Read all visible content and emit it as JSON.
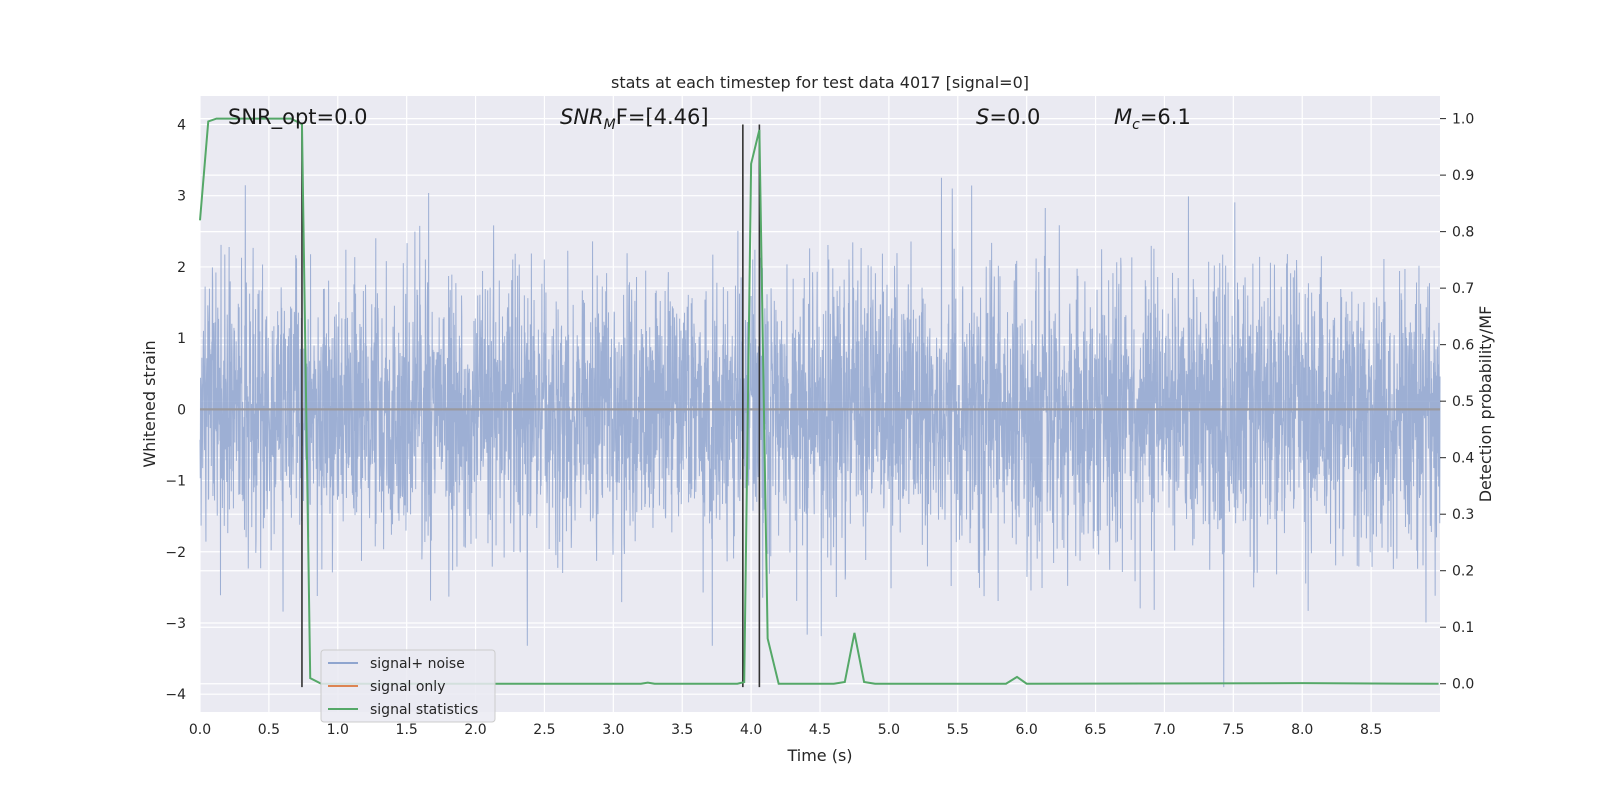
{
  "chart_data": {
    "type": "line",
    "title": "stats at each timestep for test data 4017 [signal=0]",
    "xlabel": "Time (s)",
    "ylabel": "Whitened strain",
    "y2label": "Detection probability/MF",
    "xlim": [
      0,
      9.0
    ],
    "ylim": [
      -4.25,
      4.4
    ],
    "y2lim": [
      -0.05,
      1.04
    ],
    "xticks": [
      "0.0",
      "0.5",
      "1.0",
      "1.5",
      "2.0",
      "2.5",
      "3.0",
      "3.5",
      "4.0",
      "4.5",
      "5.0",
      "5.5",
      "6.0",
      "6.5",
      "7.0",
      "7.5",
      "8.0",
      "8.5"
    ],
    "yticks": [
      "4",
      "3",
      "2",
      "1",
      "0",
      "−1",
      "−2",
      "−3",
      "−4"
    ],
    "y2ticks": [
      "1.0",
      "0.9",
      "0.8",
      "0.7",
      "0.6",
      "0.5",
      "0.4",
      "0.3",
      "0.2",
      "0.1",
      "0.0"
    ],
    "grid": true,
    "legend_position": "lower-left",
    "annotations": {
      "snr_opt": "SNR_opt=0.0",
      "snr_mf_main": "SNR",
      "snr_mf_sub": "M",
      "snr_mf_rest": "F=[4.46]",
      "s_main": "S",
      "s_rest": "=0.0",
      "mc_main": "M",
      "mc_sub": "c",
      "mc_rest": "=6.1"
    },
    "series": [
      {
        "name": "signal+ noise",
        "color": "#8fa5cf",
        "description_of_values": "whitened noisy strain, approx. zero-mean with std ~1, bounded roughly between -4 and 4"
      },
      {
        "name": "signal only",
        "color": "#dd8452",
        "x": [
          0,
          9.0
        ],
        "values": [
          0,
          0
        ]
      },
      {
        "name": "signal statistics",
        "color": "#55a868",
        "axis": "right",
        "x": [
          0,
          0.06,
          0.12,
          0.5,
          0.66,
          0.74,
          0.8,
          0.88,
          3.2,
          3.25,
          3.3,
          3.9,
          3.95,
          4.0,
          4.06,
          4.12,
          4.2,
          4.6,
          4.68,
          4.75,
          4.82,
          4.9,
          5.85,
          5.93,
          6.0,
          8.0,
          8.99
        ],
        "values": [
          0.82,
          0.995,
          1.0,
          1.0,
          1.0,
          0.99,
          0.01,
          0.0,
          0.0,
          0.002,
          0.0,
          0.0,
          0.003,
          0.92,
          0.98,
          0.08,
          0.0,
          0.0,
          0.003,
          0.09,
          0.003,
          0.0,
          0.0,
          0.012,
          0.0,
          0.001,
          0.0
        ]
      }
    ],
    "vlines": [
      {
        "x": 0.74,
        "ymin": -3.9,
        "ymax": 4.0,
        "color": "#333333"
      },
      {
        "x": 3.94,
        "ymin": -3.9,
        "ymax": 4.0,
        "color": "#333333"
      },
      {
        "x": 4.06,
        "ymin": -3.9,
        "ymax": 4.0,
        "color": "#333333"
      }
    ]
  }
}
